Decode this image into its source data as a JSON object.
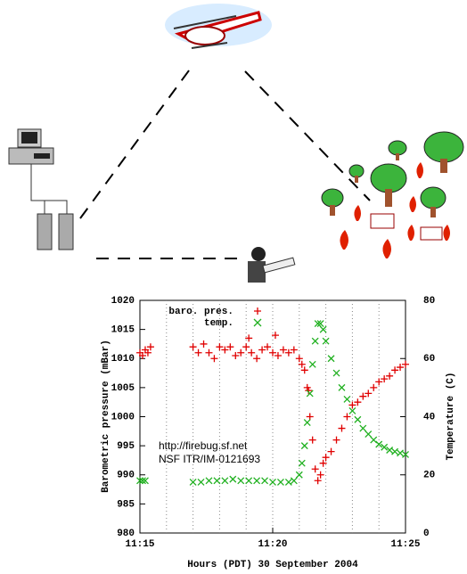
{
  "chart_data": {
    "type": "scatter",
    "xlabel": "Hours (PDT) 30 September 2004",
    "ylabel": "Barometric pressure (mBar)",
    "y2label": "Temperature (C)",
    "annotations": [
      "http://firebug.sf.net",
      "NSF ITR/IM-0121693"
    ],
    "xlim": [
      15,
      25
    ],
    "xticks": [
      {
        "value": 15,
        "label": "11:15"
      },
      {
        "value": 20,
        "label": "11:20"
      },
      {
        "value": 25,
        "label": "11:25"
      }
    ],
    "ylim": [
      980,
      1020
    ],
    "yticks": [
      980,
      985,
      990,
      995,
      1000,
      1005,
      1010,
      1015,
      1020
    ],
    "y2lim": [
      0,
      80
    ],
    "y2ticks": [
      0,
      20,
      40,
      60,
      80
    ],
    "grid": true,
    "legend": "upper-left",
    "series": [
      {
        "name": "baro. pres.",
        "color": "#e00000",
        "marker": "plus",
        "x": [
          15.0,
          15.1,
          15.2,
          15.3,
          15.4,
          17.0,
          17.2,
          17.4,
          17.6,
          17.8,
          18.0,
          18.2,
          18.4,
          18.6,
          18.8,
          19.0,
          19.1,
          19.2,
          19.4,
          19.6,
          19.8,
          20.0,
          20.1,
          20.2,
          20.4,
          20.6,
          20.8,
          21.0,
          21.1,
          21.2,
          21.3,
          21.35,
          21.4,
          21.5,
          21.6,
          21.7,
          21.8,
          21.9,
          22.0,
          22.2,
          22.4,
          22.6,
          22.8,
          23.0,
          23.2,
          23.4,
          23.6,
          23.8,
          24.0,
          24.2,
          24.4,
          24.6,
          24.8,
          25.0
        ],
        "values": [
          1011,
          1010.5,
          1011.5,
          1011,
          1012,
          1012,
          1011,
          1012.5,
          1011,
          1010,
          1012,
          1011.5,
          1012,
          1010.5,
          1011,
          1012,
          1013.5,
          1011,
          1010,
          1011.5,
          1012,
          1011,
          1014,
          1010.5,
          1011.5,
          1011,
          1011.5,
          1010,
          1009,
          1008,
          1005,
          1004.5,
          1000,
          996,
          991,
          989,
          990,
          992,
          993,
          994,
          996,
          998,
          1000,
          1002,
          1002.5,
          1003.5,
          1004,
          1005,
          1006,
          1006.5,
          1007,
          1008,
          1008.5,
          1009
        ]
      },
      {
        "name": "temp.",
        "color": "#20b020",
        "marker": "cross",
        "axis": "y2",
        "x": [
          15.0,
          15.1,
          15.2,
          17.0,
          17.3,
          17.6,
          17.9,
          18.2,
          18.5,
          18.8,
          19.1,
          19.4,
          19.7,
          20.0,
          20.3,
          20.6,
          20.8,
          21.0,
          21.1,
          21.2,
          21.3,
          21.4,
          21.5,
          21.6,
          21.7,
          21.8,
          21.9,
          22.0,
          22.2,
          22.4,
          22.6,
          22.8,
          23.0,
          23.2,
          23.4,
          23.6,
          23.8,
          24.0,
          24.2,
          24.4,
          24.6,
          24.8,
          25.0
        ],
        "values": [
          18,
          18,
          18,
          17.5,
          17.5,
          18,
          18,
          18,
          18.5,
          18,
          18,
          18,
          18,
          17.5,
          17.5,
          17.5,
          18,
          20,
          24,
          30,
          38,
          48,
          58,
          66,
          72,
          72,
          70,
          66,
          60,
          55,
          50,
          46,
          42,
          39,
          36,
          34,
          32,
          30.5,
          29.5,
          28.5,
          28,
          27.5,
          27
        ]
      }
    ]
  }
}
